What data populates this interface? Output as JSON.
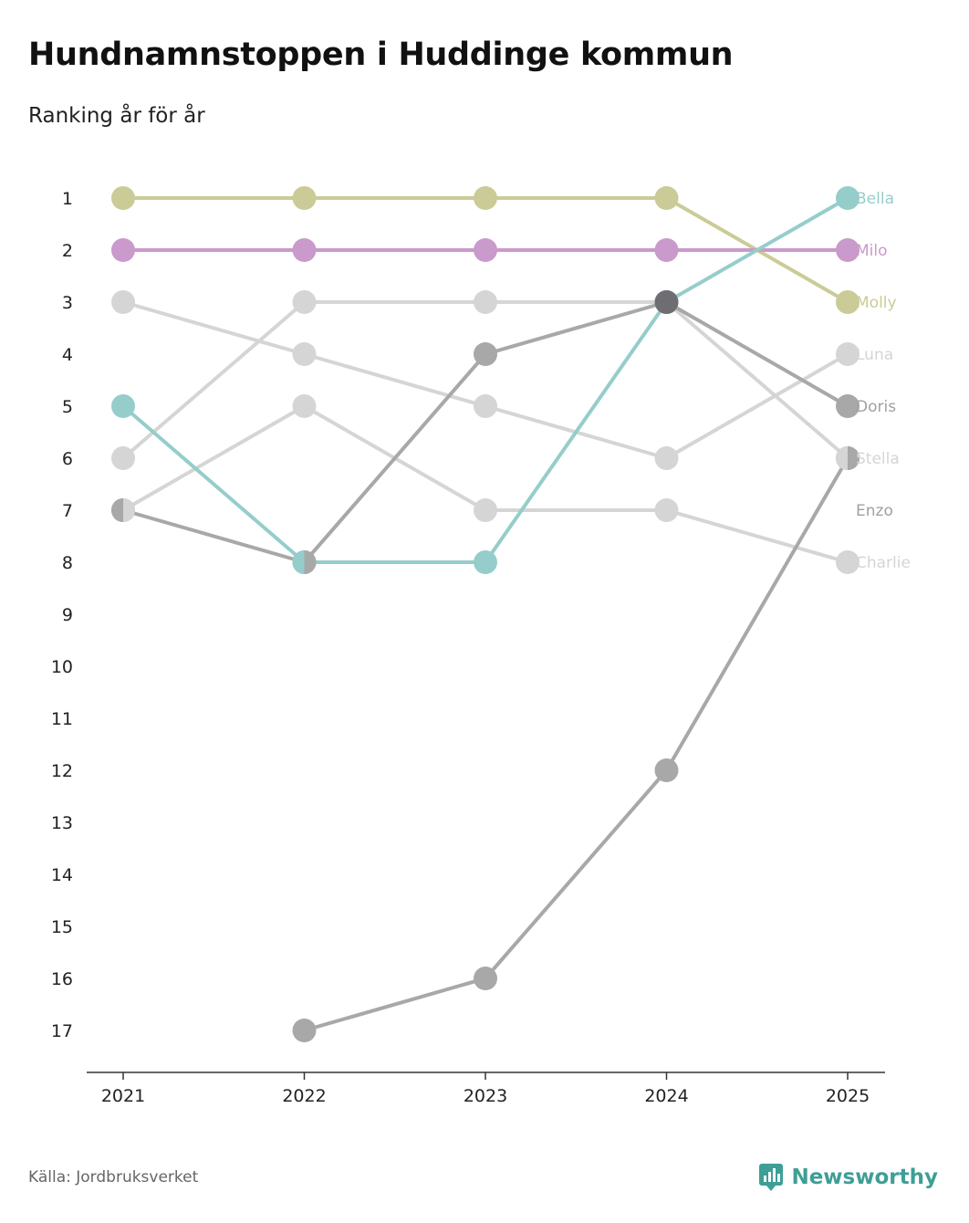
{
  "title": "Hundnamnstoppen i Huddinge kommun",
  "subtitle": "Ranking år för år",
  "source": "Källa: Jordbruksverket",
  "brand": "Newsworthy",
  "chart_data": {
    "type": "line",
    "subtype": "bump",
    "x": [
      "2021",
      "2022",
      "2023",
      "2024",
      "2025"
    ],
    "ylim": [
      1,
      17
    ],
    "y_inverted": true,
    "y_ticks": [
      "1",
      "2",
      "3",
      "4",
      "5",
      "6",
      "7",
      "8",
      "9",
      "10",
      "11",
      "12",
      "13",
      "14",
      "15",
      "16",
      "17"
    ],
    "series": [
      {
        "name": "Molly",
        "values": [
          1,
          1,
          1,
          1,
          3
        ],
        "color": "#cbcb97"
      },
      {
        "name": "Milo",
        "values": [
          2,
          2,
          2,
          2,
          2
        ],
        "color": "#c99acb"
      },
      {
        "name": "Luna",
        "values": [
          3,
          4,
          5,
          6,
          4
        ],
        "color": "#d5d5d5"
      },
      {
        "name": "Stella",
        "values": [
          6,
          3,
          3,
          3,
          6
        ],
        "color": "#d5d5d5"
      },
      {
        "name": "Charlie",
        "values": [
          7,
          5,
          7,
          7,
          8
        ],
        "color": "#d5d5d5"
      },
      {
        "name": "Bella",
        "values": [
          5,
          8,
          8,
          3,
          1
        ],
        "color": "#95cdcb"
      },
      {
        "name": "Doris",
        "values": [
          7,
          8,
          4,
          3,
          5
        ],
        "color": "#a8a8a8"
      },
      {
        "name": "Enzo",
        "values": [
          null,
          17,
          16,
          12,
          6
        ],
        "color": "#a8a8a8"
      }
    ],
    "end_labels": [
      {
        "name": "Bella",
        "rank": 1,
        "color": "#95cdcb"
      },
      {
        "name": "Milo",
        "rank": 2,
        "color": "#c99acb"
      },
      {
        "name": "Molly",
        "rank": 3,
        "color": "#cbcb97"
      },
      {
        "name": "Luna",
        "rank": 4,
        "color": "#d5d5d5"
      },
      {
        "name": "Doris",
        "rank": 5,
        "color": "#a0a0a0"
      },
      {
        "name": "Stella",
        "rank": 6,
        "color": "#d5d5d5"
      },
      {
        "name": "Enzo",
        "rank": 7,
        "color": "#a0a0a0"
      },
      {
        "name": "Charlie",
        "rank": 8,
        "color": "#d5d5d5"
      }
    ],
    "highlight_point": {
      "x": "2024",
      "rank": 3,
      "color": "#6e6e72"
    }
  }
}
